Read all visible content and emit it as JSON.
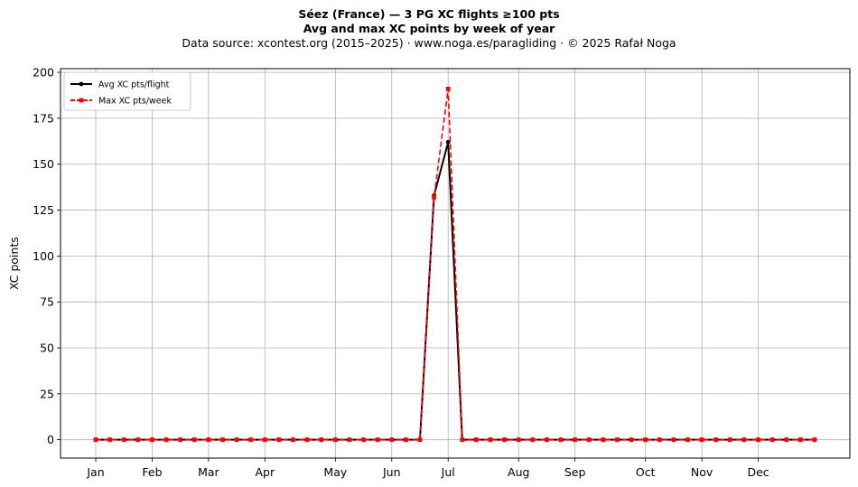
{
  "title": {
    "line1": "Séez (France)  —  3 PG XC flights ≥100 pts",
    "line2": "Avg and max XC points by week of year",
    "line3": "Data source: xcontest.org (2015–2025)  ·  www.noga.es/paragliding  ·  © 2025 Rafał Noga"
  },
  "chart_data": {
    "type": "line",
    "title": "Avg and max XC points by week of year",
    "xlabel": "",
    "ylabel": "XC points",
    "x": [
      1,
      2,
      3,
      4,
      5,
      6,
      7,
      8,
      9,
      10,
      11,
      12,
      13,
      14,
      15,
      16,
      17,
      18,
      19,
      20,
      21,
      22,
      23,
      24,
      25,
      26,
      27,
      28,
      29,
      30,
      31,
      32,
      33,
      34,
      35,
      36,
      37,
      38,
      39,
      40,
      41,
      42,
      43,
      44,
      45,
      46,
      47,
      48,
      49,
      50,
      51,
      52
    ],
    "x_ticks": [
      {
        "label": "Jan",
        "x": 1
      },
      {
        "label": "Feb",
        "x": 5
      },
      {
        "label": "Mar",
        "x": 9
      },
      {
        "label": "Apr",
        "x": 13
      },
      {
        "label": "May",
        "x": 18
      },
      {
        "label": "Jun",
        "x": 22
      },
      {
        "label": "Jul",
        "x": 26
      },
      {
        "label": "Aug",
        "x": 31
      },
      {
        "label": "Sep",
        "x": 35
      },
      {
        "label": "Oct",
        "x": 40
      },
      {
        "label": "Nov",
        "x": 44
      },
      {
        "label": "Dec",
        "x": 48
      }
    ],
    "xlim": [
      -1.5,
      54.5
    ],
    "y_ticks": [
      0,
      25,
      50,
      75,
      100,
      125,
      150,
      175,
      200
    ],
    "ylim": [
      -10,
      202
    ],
    "grid": true,
    "legend_position": "top-left",
    "series": [
      {
        "name": "Avg XC pts/flight",
        "color": "#000000",
        "style": "solid",
        "marker": "circle",
        "values": [
          0,
          0,
          0,
          0,
          0,
          0,
          0,
          0,
          0,
          0,
          0,
          0,
          0,
          0,
          0,
          0,
          0,
          0,
          0,
          0,
          0,
          0,
          0,
          0,
          133,
          162,
          0,
          0,
          0,
          0,
          0,
          0,
          0,
          0,
          0,
          0,
          0,
          0,
          0,
          0,
          0,
          0,
          0,
          0,
          0,
          0,
          0,
          0,
          0,
          0,
          0,
          0
        ]
      },
      {
        "name": "Max XC pts/week",
        "color": "#ff0000",
        "style": "dashed",
        "marker": "square",
        "values": [
          0,
          0,
          0,
          0,
          0,
          0,
          0,
          0,
          0,
          0,
          0,
          0,
          0,
          0,
          0,
          0,
          0,
          0,
          0,
          0,
          0,
          0,
          0,
          0,
          132,
          191,
          0,
          0,
          0,
          0,
          0,
          0,
          0,
          0,
          0,
          0,
          0,
          0,
          0,
          0,
          0,
          0,
          0,
          0,
          0,
          0,
          0,
          0,
          0,
          0,
          0,
          0
        ]
      }
    ]
  }
}
